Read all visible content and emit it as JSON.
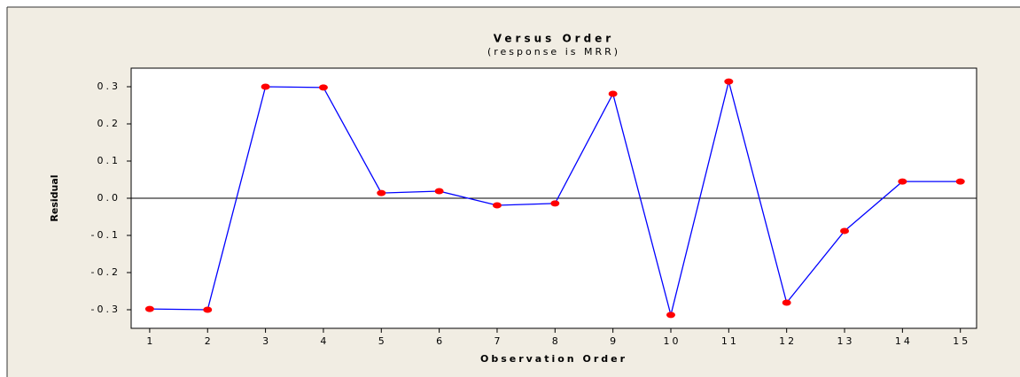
{
  "chart_data": {
    "type": "line",
    "title": "Versus Order",
    "subtitle": "(response is MRR)",
    "xlabel": "Observation Order",
    "ylabel": "Residual",
    "x": [
      1,
      2,
      3,
      4,
      5,
      6,
      7,
      8,
      9,
      10,
      11,
      12,
      13,
      14,
      15
    ],
    "values": [
      -0.298,
      -0.3,
      0.3,
      0.298,
      0.014,
      0.019,
      -0.019,
      -0.014,
      0.281,
      -0.314,
      0.314,
      -0.281,
      -0.088,
      0.045,
      0.045
    ],
    "line_color": "#0000ff",
    "marker_color": "#ff0000",
    "reference_line": 0,
    "xlim": [
      0.68,
      15.28
    ],
    "xticks": [
      1,
      2,
      3,
      4,
      5,
      6,
      7,
      8,
      9,
      10,
      11,
      12,
      13,
      14,
      15
    ],
    "ylim": [
      -0.35,
      0.35
    ],
    "yticks": [
      -0.3,
      -0.2,
      -0.1,
      {
        "value": 0,
        "label": "0.0"
      },
      0.1,
      0.2,
      0.3
    ]
  }
}
